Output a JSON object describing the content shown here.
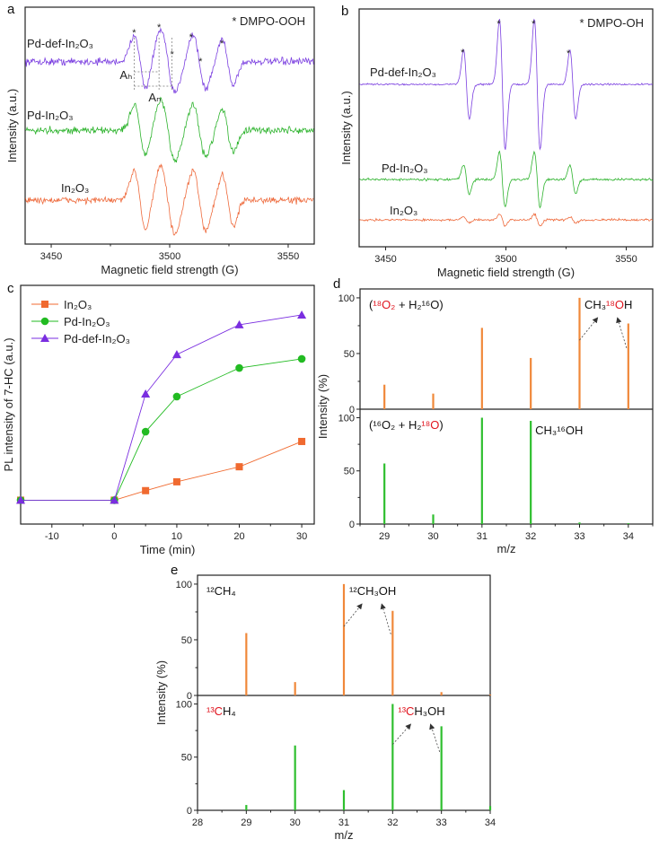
{
  "chart_data": [
    {
      "panel": "a",
      "type": "line",
      "title": "",
      "annotation": "* DMPO-OOH",
      "xlabel": "Magnetic field strength (G)",
      "ylabel": "Intensity (a.u.)",
      "xlim": [
        3439,
        3561
      ],
      "ylim": [
        0,
        10
      ],
      "xticks": [
        3450,
        3500,
        3550
      ],
      "star_positions": [
        3485,
        3495.5,
        3501,
        3509,
        3513,
        3522
      ],
      "hyperfine_labels": [
        "Aₕ",
        "Aₙ"
      ],
      "series": [
        {
          "name": "Pd-def-In₂O₃",
          "color": "#7b3fe0",
          "offset": 7.7,
          "scale": 1.15,
          "noise": 0.13
        },
        {
          "name": "Pd-In₂O₃",
          "color": "#2db32d",
          "offset": 4.8,
          "scale": 1.1,
          "noise": 0.13
        },
        {
          "name": "In₂O₃",
          "color": "#ee6a3c",
          "offset": 1.85,
          "scale": 1.25,
          "noise": 0.12
        }
      ],
      "lines": [
        {
          "center": 3487.5,
          "width": 2.4,
          "amp": 1.0
        },
        {
          "center": 3499.2,
          "width": 3.0,
          "amp": 1.15
        },
        {
          "center": 3512.5,
          "width": 2.7,
          "amp": 1.0
        },
        {
          "center": 3524.5,
          "width": 2.3,
          "amp": 0.85
        }
      ]
    },
    {
      "panel": "b",
      "type": "line",
      "annotation": "* DMPO-OH",
      "xlabel": "Magnetic field strength (G)",
      "ylabel": "Intensity (a.u.)",
      "xlim": [
        3439,
        3561
      ],
      "ylim": [
        0,
        10
      ],
      "xticks": [
        3450,
        3500,
        3550
      ],
      "star_positions": [
        3482,
        3497,
        3511.5,
        3526
      ],
      "series": [
        {
          "name": "Pd-def-In₂O₃",
          "color": "#7b3fe0",
          "offset": 6.83,
          "scale": 1.0,
          "noise": 0.03
        },
        {
          "name": "Pd-In₂O₃",
          "color": "#2db32d",
          "offset": 2.83,
          "scale": 0.42,
          "noise": 0.04
        },
        {
          "name": "In₂O₃",
          "color": "#ee6a3c",
          "offset": 1.13,
          "scale": 0.09,
          "noise": 0.04
        }
      ],
      "lines": [
        {
          "center": 3483.6,
          "width": 1.2,
          "amp": 1.45
        },
        {
          "center": 3498.5,
          "width": 1.2,
          "amp": 2.75
        },
        {
          "center": 3513.0,
          "width": 1.2,
          "amp": 2.75
        },
        {
          "center": 3527.8,
          "width": 1.2,
          "amp": 1.45
        }
      ]
    },
    {
      "panel": "c",
      "type": "line",
      "xlabel": "Time (min)",
      "ylabel": "PL intensity of 7-HC (a.u.)",
      "xlim": [
        -15,
        32
      ],
      "ylim": [
        0,
        100
      ],
      "xticks": [
        -10,
        0,
        10,
        20,
        30
      ],
      "legend_position": "top-left",
      "x": [
        -15,
        0,
        5,
        10,
        20,
        30
      ],
      "series": [
        {
          "name": "In₂O₃",
          "color": "#f06a30",
          "marker": "square",
          "values": [
            10,
            10,
            14,
            17.7,
            24,
            34.6
          ]
        },
        {
          "name": "Pd-In₂O₃",
          "color": "#22bb22",
          "marker": "circle",
          "values": [
            10,
            10,
            38.7,
            53.4,
            65.4,
            69.2
          ]
        },
        {
          "name": "Pd-def-In₂O₃",
          "color": "#7a2ee0",
          "marker": "triangle",
          "values": [
            10,
            10,
            54.5,
            71,
            83.5,
            87.6
          ]
        }
      ]
    },
    {
      "panel": "d",
      "type": "bar",
      "xlabel": "m/z",
      "ylabel": "Intensity (%)",
      "xlim": [
        28.5,
        34.5
      ],
      "ylim": [
        0,
        108
      ],
      "xticks": [
        29,
        30,
        31,
        32,
        33,
        34
      ],
      "yticks": [
        0,
        50,
        100
      ],
      "subplots": [
        {
          "condition": [
            {
              "t": "(",
              "red": false
            },
            {
              "t": "¹⁸O₂",
              "red": true
            },
            {
              "t": " + H₂¹⁶O)",
              "red": false
            }
          ],
          "annotation": [
            {
              "t": "CH₃",
              "red": false
            },
            {
              "t": "¹⁸O",
              "red": true
            },
            {
              "t": "H",
              "red": false
            }
          ],
          "color": "#f0883a",
          "x": [
            29,
            30,
            31,
            32,
            33,
            34
          ],
          "values": [
            22,
            14,
            73,
            46,
            100,
            77
          ],
          "arrows_from": [
            33,
            34
          ]
        },
        {
          "condition": [
            {
              "t": "(¹⁶O₂ + H₂",
              "red": false
            },
            {
              "t": "¹⁸O",
              "red": true
            },
            {
              "t": ")",
              "red": false
            }
          ],
          "annotation": [
            {
              "t": "CH₃¹⁶OH",
              "red": false
            }
          ],
          "color": "#2fbf2f",
          "x": [
            29,
            30,
            31,
            32,
            33,
            34
          ],
          "values": [
            57,
            9,
            100,
            97,
            1.5,
            0.8
          ],
          "arrows_from": []
        }
      ]
    },
    {
      "panel": "e",
      "type": "bar",
      "xlabel": "m/z",
      "ylabel": "Intensity (%)",
      "xlim": [
        28,
        34
      ],
      "ylim": [
        0,
        108
      ],
      "xticks": [
        28,
        29,
        30,
        31,
        32,
        33,
        34
      ],
      "yticks": [
        0,
        50,
        100
      ],
      "subplots": [
        {
          "condition": [
            {
              "t": "¹²CH₄",
              "red": false
            }
          ],
          "annotation": [
            {
              "t": "¹²CH₃OH",
              "red": false
            }
          ],
          "color": "#f0883a",
          "x": [
            29,
            30,
            31,
            32,
            33,
            34
          ],
          "values": [
            56,
            12,
            100,
            76,
            3,
            0.8
          ],
          "arrows_from": [
            31,
            32
          ]
        },
        {
          "condition": [
            {
              "t": "¹³C",
              "red": true
            },
            {
              "t": "H₄",
              "red": false
            }
          ],
          "annotation": [
            {
              "t": "¹³C",
              "red": true
            },
            {
              "t": "H₃OH",
              "red": false
            }
          ],
          "color": "#2fbf2f",
          "x": [
            29,
            30,
            31,
            32,
            33,
            34
          ],
          "values": [
            5,
            61,
            19,
            100,
            79,
            4
          ],
          "arrows_from": [
            32,
            33
          ]
        }
      ]
    }
  ]
}
